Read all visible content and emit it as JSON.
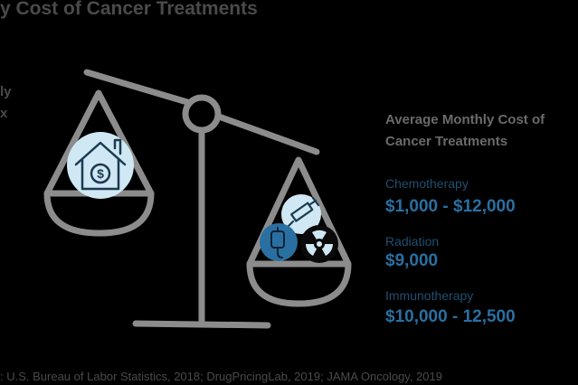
{
  "header": {
    "title": "y Cost of Cancer Treatments"
  },
  "left_fragments": [
    "ly",
    "x"
  ],
  "panel": {
    "heading_line1": "Average Monthly Cost of",
    "heading_line2": "Cancer Treatments",
    "items": [
      {
        "label": "Chemotherapy",
        "value": "$1,000 - $12,000"
      },
      {
        "label": "Radiation",
        "value": "$9,000"
      },
      {
        "label": "Immunotherapy",
        "value": "$10,000 - 12,500"
      }
    ]
  },
  "source": ": U.S. Bureau of Labor Statistics, 2018; DrugPricingLab, 2019; JAMA Oncology, 2019",
  "icons": [
    "house-dollar-icon",
    "syringe-icon",
    "iv-bag-icon",
    "radiation-icon"
  ],
  "colors": {
    "background": "#000000",
    "scale": "#8c8c8c",
    "icon_circle": "#cfe8f3",
    "icon_dark_circle": "#2a6fa1",
    "label_blue": "#1f4f70",
    "value_blue": "#2a6fa1",
    "heading_gray": "#6a6a6a"
  }
}
